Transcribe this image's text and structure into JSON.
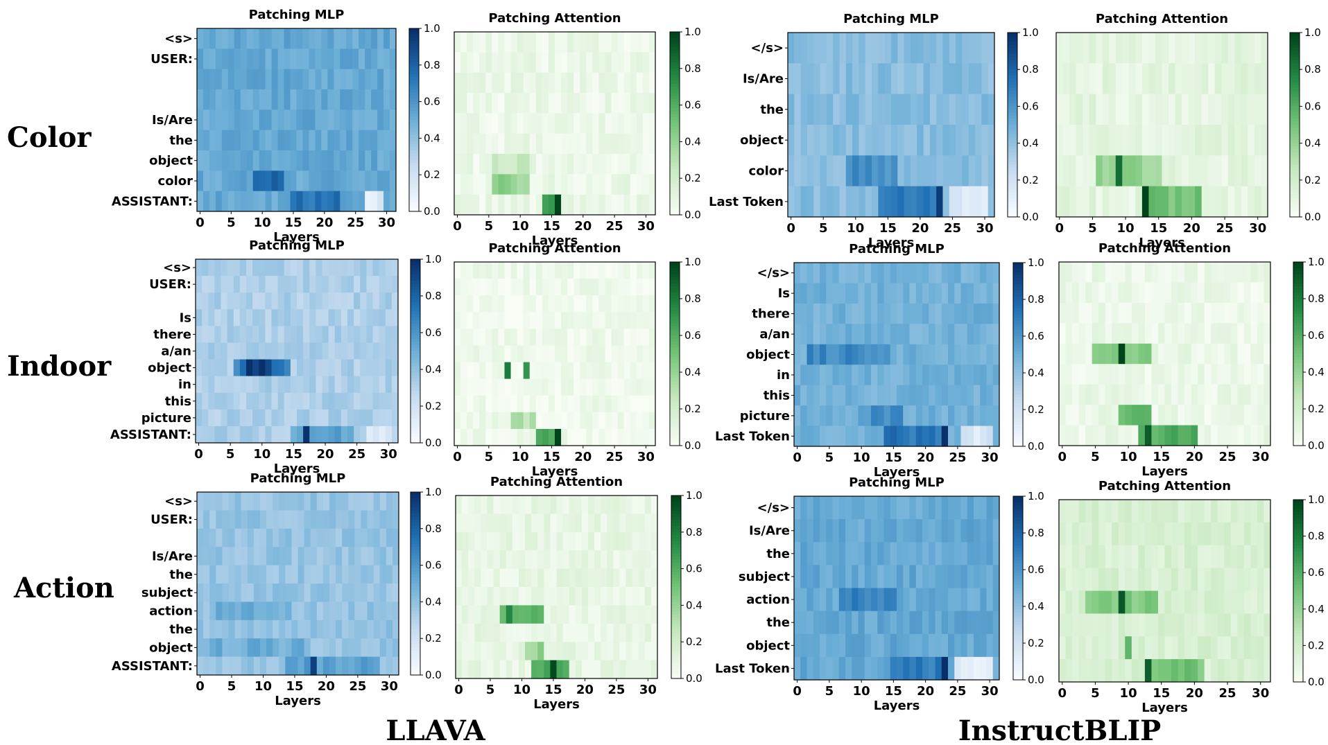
{
  "figure": {
    "row_labels": [
      "Color",
      "Indoor",
      "Action"
    ],
    "column_labels": [
      "LLAVA",
      "InstructBLIP"
    ],
    "xlabel": "Layers",
    "xticks": [
      "0",
      "5",
      "10",
      "15",
      "20",
      "25",
      "30"
    ],
    "colorbar_ticks": [
      "1.0",
      "0.8",
      "0.6",
      "0.4",
      "0.2",
      "0.0"
    ],
    "colors": {
      "blue_low": "#f7fbff",
      "blue_high": "#08306b",
      "green_low": "#f7fcf5",
      "green_high": "#00441b"
    }
  },
  "chart_data": [
    {
      "id": "color-llava-mlp",
      "type": "heatmap",
      "title": "Patching MLP",
      "cmap": "Blues",
      "xlabel": "Layers",
      "x_range": [
        0,
        31
      ],
      "color_range": [
        0,
        1
      ],
      "tokens": [
        "<s>",
        "USER:",
        "",
        "",
        "Is/Are",
        "the",
        "object",
        "color",
        "ASSISTANT:"
      ],
      "base": 0.52,
      "hot": [
        [
          7,
          9,
          13,
          0.8
        ],
        [
          8,
          15,
          22,
          0.75
        ],
        [
          8,
          27,
          29,
          0.1
        ]
      ]
    },
    {
      "id": "color-llava-attn",
      "type": "heatmap",
      "title": "Patching Attention",
      "cmap": "Greens",
      "xlabel": "Layers",
      "x_range": [
        0,
        31
      ],
      "color_range": [
        0,
        1
      ],
      "tokens": [
        "",
        "",
        "",
        "",
        "",
        "",
        "",
        "",
        ""
      ],
      "base": 0.06,
      "hot": [
        [
          6,
          6,
          11,
          0.25
        ],
        [
          7,
          6,
          11,
          0.4
        ],
        [
          8,
          14,
          16,
          0.65
        ],
        [
          8,
          16,
          16,
          1.0
        ]
      ]
    },
    {
      "id": "color-blip-mlp",
      "type": "heatmap",
      "title": "Patching MLP",
      "cmap": "Blues",
      "xlabel": "Layers",
      "x_range": [
        0,
        31
      ],
      "color_range": [
        0,
        1
      ],
      "tokens": [
        "</s>",
        "Is/Are",
        "the",
        "object",
        "color",
        "Last Token"
      ],
      "base": 0.42,
      "hot": [
        [
          4,
          9,
          16,
          0.62
        ],
        [
          5,
          14,
          23,
          0.7
        ],
        [
          5,
          23,
          23,
          1.0
        ],
        [
          5,
          25,
          30,
          0.12
        ]
      ]
    },
    {
      "id": "color-blip-attn",
      "type": "heatmap",
      "title": "Patching Attention",
      "cmap": "Greens",
      "xlabel": "Layers",
      "x_range": [
        0,
        31
      ],
      "color_range": [
        0,
        1
      ],
      "tokens": [
        "",
        "",
        "",
        "",
        "",
        ""
      ],
      "base": 0.1,
      "hot": [
        [
          4,
          6,
          15,
          0.4
        ],
        [
          4,
          9,
          9,
          0.85
        ],
        [
          5,
          13,
          21,
          0.5
        ],
        [
          5,
          13,
          13,
          1.0
        ]
      ]
    },
    {
      "id": "indoor-llava-mlp",
      "type": "heatmap",
      "title": "Patching MLP",
      "cmap": "Blues",
      "xlabel": "Layers",
      "x_range": [
        0,
        31
      ],
      "color_range": [
        0,
        1
      ],
      "tokens": [
        "<s>",
        "USER:",
        "",
        "Is",
        "there",
        "a/an",
        "object",
        "in",
        "this",
        "picture",
        "ASSISTANT:"
      ],
      "base": 0.32,
      "hot": [
        [
          6,
          6,
          14,
          0.7
        ],
        [
          6,
          8,
          11,
          0.95
        ],
        [
          10,
          15,
          24,
          0.55
        ],
        [
          10,
          17,
          17,
          0.95
        ],
        [
          10,
          27,
          30,
          0.12
        ]
      ]
    },
    {
      "id": "indoor-llava-attn",
      "type": "heatmap",
      "title": "Patching Attention",
      "cmap": "Greens",
      "xlabel": "Layers",
      "x_range": [
        0,
        31
      ],
      "color_range": [
        0,
        1
      ],
      "tokens": [
        "",
        "",
        "",
        "",
        "",
        "",
        "",
        "",
        "",
        "",
        ""
      ],
      "base": 0.04,
      "hot": [
        [
          6,
          8,
          8,
          0.75
        ],
        [
          6,
          11,
          11,
          0.75
        ],
        [
          9,
          9,
          12,
          0.3
        ],
        [
          10,
          13,
          16,
          0.65
        ],
        [
          10,
          16,
          16,
          1.0
        ]
      ]
    },
    {
      "id": "indoor-blip-mlp",
      "type": "heatmap",
      "title": "Patching MLP",
      "cmap": "Blues",
      "xlabel": "Layers",
      "x_range": [
        0,
        31
      ],
      "color_range": [
        0,
        1
      ],
      "tokens": [
        "</s>",
        "Is",
        "there",
        "a/an",
        "object",
        "in",
        "this",
        "picture",
        "Last Token"
      ],
      "base": 0.48,
      "hot": [
        [
          4,
          2,
          14,
          0.65
        ],
        [
          7,
          10,
          16,
          0.62
        ],
        [
          8,
          14,
          23,
          0.72
        ],
        [
          8,
          23,
          23,
          1.0
        ],
        [
          8,
          26,
          30,
          0.15
        ]
      ]
    },
    {
      "id": "indoor-blip-attn",
      "type": "heatmap",
      "title": "Patching Attention",
      "cmap": "Greens",
      "xlabel": "Layers",
      "x_range": [
        0,
        31
      ],
      "color_range": [
        0,
        1
      ],
      "tokens": [
        "",
        "",
        "",
        "",
        "",
        "",
        "",
        "",
        ""
      ],
      "base": 0.06,
      "hot": [
        [
          4,
          5,
          13,
          0.45
        ],
        [
          4,
          9,
          9,
          1.0
        ],
        [
          7,
          9,
          13,
          0.55
        ],
        [
          8,
          12,
          20,
          0.6
        ],
        [
          8,
          13,
          13,
          0.95
        ]
      ]
    },
    {
      "id": "action-llava-mlp",
      "type": "heatmap",
      "title": "Patching MLP",
      "cmap": "Blues",
      "xlabel": "Layers",
      "x_range": [
        0,
        31
      ],
      "color_range": [
        0,
        1
      ],
      "tokens": [
        "<s>",
        "USER:",
        "",
        "Is/Are",
        "the",
        "subject",
        "action",
        "the",
        "object",
        "ASSISTANT:"
      ],
      "base": 0.38,
      "hot": [
        [
          6,
          3,
          14,
          0.5
        ],
        [
          8,
          0,
          17,
          0.5
        ],
        [
          9,
          14,
          28,
          0.55
        ],
        [
          9,
          18,
          18,
          1.0
        ]
      ]
    },
    {
      "id": "action-llava-attn",
      "type": "heatmap",
      "title": "Patching Attention",
      "cmap": "Greens",
      "xlabel": "Layers",
      "x_range": [
        0,
        31
      ],
      "color_range": [
        0,
        1
      ],
      "tokens": [
        "",
        "",
        "",
        "",
        "",
        "",
        "",
        "",
        "",
        ""
      ],
      "base": 0.08,
      "hot": [
        [
          6,
          7,
          13,
          0.6
        ],
        [
          6,
          8,
          8,
          0.8
        ],
        [
          8,
          11,
          13,
          0.4
        ],
        [
          9,
          12,
          17,
          0.6
        ],
        [
          9,
          15,
          15,
          1.0
        ]
      ]
    },
    {
      "id": "action-blip-mlp",
      "type": "heatmap",
      "title": "Patching MLP",
      "cmap": "Blues",
      "xlabel": "Layers",
      "x_range": [
        0,
        31
      ],
      "color_range": [
        0,
        1
      ],
      "tokens": [
        "</s>",
        "Is/Are",
        "the",
        "subject",
        "action",
        "the",
        "object",
        "Last Token"
      ],
      "base": 0.52,
      "hot": [
        [
          4,
          7,
          15,
          0.7
        ],
        [
          7,
          15,
          23,
          0.7
        ],
        [
          7,
          23,
          23,
          1.0
        ],
        [
          7,
          25,
          30,
          0.12
        ]
      ]
    },
    {
      "id": "action-blip-attn",
      "type": "heatmap",
      "title": "Patching Attention",
      "cmap": "Greens",
      "xlabel": "Layers",
      "x_range": [
        0,
        31
      ],
      "color_range": [
        0,
        1
      ],
      "tokens": [
        "",
        "",
        "",
        "",
        "",
        "",
        "",
        ""
      ],
      "base": 0.16,
      "hot": [
        [
          4,
          4,
          14,
          0.45
        ],
        [
          4,
          9,
          9,
          1.0
        ],
        [
          6,
          10,
          10,
          0.6
        ],
        [
          7,
          13,
          21,
          0.5
        ],
        [
          7,
          13,
          13,
          0.9
        ]
      ]
    }
  ]
}
